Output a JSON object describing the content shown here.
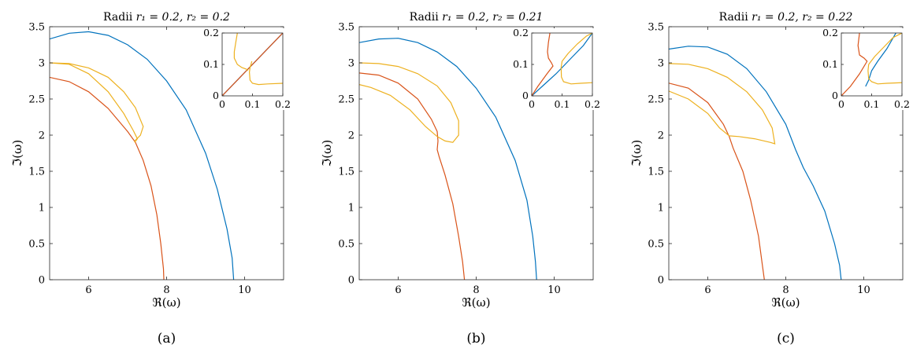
{
  "colors": {
    "blue": "#0072BD",
    "orange": "#D95319",
    "yellow": "#EDB120"
  },
  "chart_data": [
    {
      "type": "line",
      "title_prefix": "Radii ",
      "title_math": "r₁ = 0.2, r₂ = 0.2",
      "xlabel": "ℜ(ω)",
      "ylabel": "ℑ(ω)",
      "caption": "(a)",
      "xlim": [
        5,
        11
      ],
      "ylim": [
        0,
        3.5
      ],
      "xticks": [
        6,
        8,
        10
      ],
      "yticks": [
        0,
        0.5,
        1,
        1.5,
        2,
        2.5,
        3,
        3.5
      ],
      "series": [
        {
          "color": "blue",
          "x": [
            5,
            5.5,
            6,
            6.5,
            7,
            7.5,
            8,
            8.5,
            9,
            9.3,
            9.55,
            9.68,
            9.72
          ],
          "y": [
            3.33,
            3.41,
            3.43,
            3.38,
            3.25,
            3.05,
            2.75,
            2.35,
            1.75,
            1.25,
            0.7,
            0.3,
            0
          ]
        },
        {
          "color": "orange",
          "x": [
            5,
            5.5,
            6,
            6.5,
            7,
            7.2,
            7.4,
            7.6,
            7.75,
            7.85,
            7.92,
            7.93
          ],
          "y": [
            2.8,
            2.74,
            2.6,
            2.37,
            2.05,
            1.9,
            1.65,
            1.3,
            0.9,
            0.5,
            0.15,
            0
          ]
        },
        {
          "color": "yellow",
          "x": [
            5,
            5.5,
            6,
            6.5,
            6.9,
            7.2,
            7.4,
            7.33,
            7.2,
            7.18,
            7.25,
            7.15,
            6.9,
            6.5,
            6,
            5.5,
            5
          ],
          "y": [
            3.0,
            2.99,
            2.93,
            2.8,
            2.6,
            2.38,
            2.12,
            2.0,
            1.93,
            1.9,
            1.95,
            2.06,
            2.3,
            2.6,
            2.85,
            2.98,
            3.0
          ]
        }
      ],
      "inset": {
        "xlim": [
          0,
          0.2
        ],
        "ylim": [
          0,
          0.2
        ],
        "xticks": [
          0,
          0.1,
          0.2
        ],
        "yticks": [
          0,
          0.1,
          0.2
        ],
        "series": [
          {
            "color": "blue",
            "x": [
              0,
              0.2
            ],
            "y": [
              0,
              0.2
            ]
          },
          {
            "color": "orange",
            "x": [
              0,
              0.2
            ],
            "y": [
              0,
              0.2
            ]
          },
          {
            "color": "yellow",
            "x": [
              0.05,
              0.045,
              0.04,
              0.04,
              0.05,
              0.065,
              0.08,
              0.085
            ],
            "y": [
              0.2,
              0.17,
              0.14,
              0.12,
              0.1,
              0.09,
              0.085,
              0.08
            ]
          },
          {
            "color": "yellow",
            "x": [
              0.098,
              0.095,
              0.092,
              0.09,
              0.092,
              0.1,
              0.12,
              0.15,
              0.2
            ],
            "y": [
              0.11,
              0.1,
              0.09,
              0.075,
              0.05,
              0.04,
              0.036,
              0.038,
              0.04
            ]
          }
        ]
      }
    },
    {
      "type": "line",
      "title_prefix": "Radii ",
      "title_math": "r₁ = 0.2, r₂ = 0.21",
      "xlabel": "ℜ(ω)",
      "ylabel": "ℑ(ω)",
      "caption": "(b)",
      "xlim": [
        5,
        11
      ],
      "ylim": [
        0,
        3.5
      ],
      "xticks": [
        6,
        8,
        10
      ],
      "yticks": [
        0,
        0.5,
        1,
        1.5,
        2,
        2.5,
        3,
        3.5
      ],
      "series": [
        {
          "color": "blue",
          "x": [
            5,
            5.5,
            6,
            6.5,
            7,
            7.5,
            8,
            8.5,
            9,
            9.3,
            9.45,
            9.52,
            9.55
          ],
          "y": [
            3.28,
            3.33,
            3.34,
            3.28,
            3.15,
            2.95,
            2.65,
            2.25,
            1.65,
            1.1,
            0.6,
            0.25,
            0
          ]
        },
        {
          "color": "orange",
          "x": [
            5,
            5.5,
            6,
            6.5,
            6.85,
            7.0,
            7.02,
            7.0,
            7.05,
            7.2,
            7.4,
            7.55,
            7.65,
            7.7
          ],
          "y": [
            2.86,
            2.83,
            2.72,
            2.5,
            2.22,
            2.05,
            1.92,
            1.8,
            1.7,
            1.45,
            1.05,
            0.6,
            0.25,
            0
          ]
        },
        {
          "color": "yellow",
          "x": [
            5,
            5.5,
            6,
            6.5,
            7,
            7.35,
            7.55,
            7.55,
            7.4,
            7.2,
            7.0,
            6.7,
            6.3,
            5.8,
            5.3,
            5
          ],
          "y": [
            3.0,
            2.99,
            2.95,
            2.85,
            2.68,
            2.45,
            2.2,
            2.0,
            1.9,
            1.92,
            1.98,
            2.12,
            2.35,
            2.55,
            2.66,
            2.7
          ]
        }
      ],
      "inset": {
        "xlim": [
          0,
          0.2
        ],
        "ylim": [
          0,
          0.2
        ],
        "xticks": [
          0,
          0.1,
          0.2
        ],
        "yticks": [
          0,
          0.1,
          0.2
        ],
        "series": [
          {
            "color": "blue",
            "x": [
              0,
              0.04,
              0.08,
              0.1,
              0.13,
              0.17,
              0.2
            ],
            "y": [
              0,
              0.035,
              0.07,
              0.09,
              0.12,
              0.16,
              0.2
            ]
          },
          {
            "color": "orange",
            "x": [
              0.06,
              0.055,
              0.052,
              0.055,
              0.065,
              0.07,
              0.05,
              0.02,
              0
            ],
            "y": [
              0.2,
              0.17,
              0.14,
              0.12,
              0.105,
              0.095,
              0.07,
              0.03,
              0
            ]
          },
          {
            "color": "yellow",
            "x": [
              0.1,
              0.12,
              0.15,
              0.18,
              0.2
            ],
            "y": [
              0.11,
              0.135,
              0.165,
              0.19,
              0.2
            ]
          },
          {
            "color": "yellow",
            "x": [
              0.1,
              0.097,
              0.098,
              0.105,
              0.13,
              0.16,
              0.2
            ],
            "y": [
              0.11,
              0.09,
              0.06,
              0.045,
              0.038,
              0.04,
              0.042
            ]
          }
        ]
      }
    },
    {
      "type": "line",
      "title_prefix": "Radii ",
      "title_math": "r₁ = 0.2, r₂ = 0.22",
      "xlabel": "ℜ(ω)",
      "ylabel": "ℑ(ω)",
      "caption": "(c)",
      "xlim": [
        5,
        11
      ],
      "ylim": [
        0,
        3.5
      ],
      "xticks": [
        6,
        8,
        10
      ],
      "yticks": [
        0,
        0.5,
        1,
        1.5,
        2,
        2.5,
        3,
        3.5
      ],
      "series": [
        {
          "color": "blue",
          "x": [
            5,
            5.5,
            6,
            6.5,
            7,
            7.5,
            8.0,
            8.25,
            8.45,
            8.7,
            9.0,
            9.25,
            9.38,
            9.42
          ],
          "y": [
            3.19,
            3.23,
            3.22,
            3.12,
            2.92,
            2.6,
            2.15,
            1.8,
            1.55,
            1.3,
            0.95,
            0.5,
            0.2,
            0
          ]
        },
        {
          "color": "orange",
          "x": [
            5,
            5.5,
            6,
            6.4,
            6.55,
            6.65,
            6.9,
            7.1,
            7.3,
            7.4,
            7.45
          ],
          "y": [
            2.72,
            2.65,
            2.45,
            2.15,
            1.98,
            1.82,
            1.5,
            1.1,
            0.6,
            0.2,
            0
          ]
        },
        {
          "color": "yellow",
          "x": [
            5,
            5.5,
            6,
            6.5,
            7,
            7.4,
            7.65,
            7.72,
            7.6,
            7.2,
            6.8,
            6.55,
            6.3,
            6.0,
            5.5,
            5
          ],
          "y": [
            2.99,
            2.98,
            2.92,
            2.8,
            2.6,
            2.35,
            2.1,
            1.88,
            1.9,
            1.95,
            1.98,
            1.99,
            2.1,
            2.3,
            2.5,
            2.61
          ]
        }
      ],
      "inset": {
        "xlim": [
          0,
          0.2
        ],
        "ylim": [
          0,
          0.2
        ],
        "xticks": [
          0,
          0.1,
          0.2
        ],
        "yticks": [
          0,
          0.1,
          0.2
        ],
        "series": [
          {
            "color": "blue",
            "x": [
              0.08,
              0.09,
              0.1,
              0.12,
              0.15,
              0.18
            ],
            "y": [
              0.03,
              0.05,
              0.08,
              0.11,
              0.15,
              0.2
            ]
          },
          {
            "color": "orange",
            "x": [
              0.06,
              0.055,
              0.06,
              0.075,
              0.085,
              0.06,
              0.03,
              0
            ],
            "y": [
              0.2,
              0.16,
              0.13,
              0.12,
              0.11,
              0.07,
              0.03,
              0
            ]
          },
          {
            "color": "yellow",
            "x": [
              0.09,
              0.11,
              0.14,
              0.17,
              0.2
            ],
            "y": [
              0.1,
              0.125,
              0.155,
              0.185,
              0.2
            ]
          },
          {
            "color": "yellow",
            "x": [
              0.09,
              0.088,
              0.09,
              0.1,
              0.12,
              0.15,
              0.2
            ],
            "y": [
              0.1,
              0.08,
              0.055,
              0.045,
              0.038,
              0.04,
              0.042
            ]
          }
        ]
      }
    }
  ]
}
